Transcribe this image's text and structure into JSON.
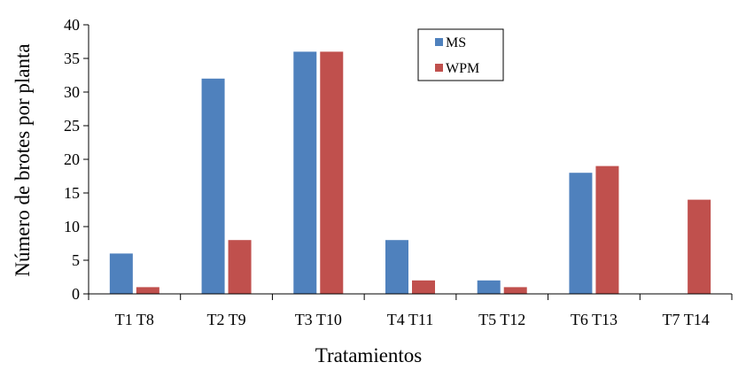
{
  "chart_data": {
    "type": "bar",
    "title": "",
    "xlabel": "Tratamientos",
    "ylabel": "Número de brotes por planta",
    "categories": [
      "T1 T8",
      "T2 T9",
      "T3 T10",
      "T4 T11",
      "T5 T12",
      "T6 T13",
      "T7 T14"
    ],
    "series": [
      {
        "name": "MS",
        "color": "#4F81BD",
        "values": [
          6,
          32,
          36,
          8,
          2,
          18,
          0
        ]
      },
      {
        "name": "WPM",
        "color": "#C0504D",
        "values": [
          1,
          8,
          36,
          2,
          1,
          19,
          14
        ]
      }
    ],
    "ylim": [
      0,
      40
    ],
    "yticks": [
      "0",
      "5",
      "10",
      "15",
      "20",
      "25",
      "30",
      "35",
      "40"
    ],
    "grid": false,
    "legend": "top-center"
  }
}
